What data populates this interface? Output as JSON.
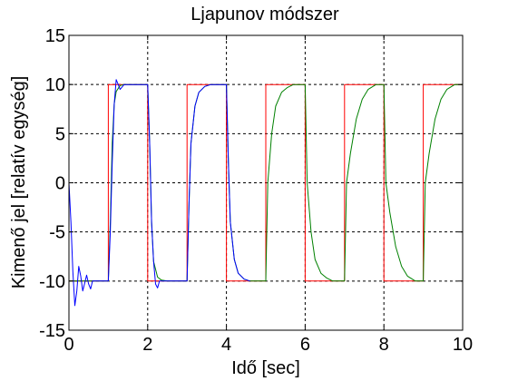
{
  "chart_data": {
    "type": "line",
    "title": "Ljapunov módszer",
    "xlabel": "Idő [sec]",
    "ylabel": "Kimenő jel [relatív egység]",
    "xlim": [
      0,
      10
    ],
    "ylim": [
      -15,
      15
    ],
    "xticks": [
      "0",
      "2",
      "4",
      "6",
      "8",
      "10"
    ],
    "yticks": [
      "15",
      "10",
      "5",
      "0",
      "-5",
      "-10",
      "-15"
    ],
    "grid": true,
    "series": [
      {
        "color": "#ff0000",
        "style": "reference square wave",
        "x": [
          0,
          1,
          1,
          2,
          2,
          3,
          3,
          4,
          4,
          5,
          5,
          6,
          6,
          7,
          7,
          8,
          8,
          9,
          9,
          10
        ],
        "y": [
          -10,
          -10,
          10,
          10,
          -10,
          -10,
          10,
          10,
          -10,
          -10,
          10,
          10,
          -10,
          -10,
          10,
          10,
          -10,
          -10,
          10,
          10
        ]
      },
      {
        "color": "#008000",
        "style": "output with slowing first-order tracking",
        "x": [
          0,
          1,
          1.05,
          1.1,
          1.15,
          1.2,
          1.3,
          1.4,
          1.6,
          2,
          2.05,
          2.1,
          2.15,
          2.25,
          2.35,
          2.5,
          3,
          3.05,
          3.1,
          3.2,
          3.3,
          3.45,
          3.6,
          4,
          4.05,
          4.1,
          4.2,
          4.3,
          4.45,
          4.6,
          5,
          5.05,
          5.15,
          5.25,
          5.4,
          5.55,
          5.7,
          6,
          6.05,
          6.15,
          6.25,
          6.4,
          6.55,
          6.7,
          7,
          7.05,
          7.15,
          7.3,
          7.45,
          7.6,
          7.8,
          8,
          8.05,
          8.15,
          8.3,
          8.45,
          8.6,
          8.8,
          9,
          9.05,
          9.15,
          9.3,
          9.45,
          9.6,
          9.8,
          10
        ],
        "y": [
          -10,
          -10,
          -4,
          4,
          8,
          9.3,
          9.9,
          10,
          10,
          10,
          4,
          -4,
          -8,
          -9.6,
          -9.9,
          -10,
          -10,
          -2,
          4,
          7.8,
          9.2,
          9.8,
          10,
          10,
          2,
          -4,
          -7.8,
          -9.2,
          -9.8,
          -10,
          -10,
          0,
          5,
          7.8,
          9.2,
          9.7,
          10,
          10,
          0,
          -5,
          -7.8,
          -9.2,
          -9.7,
          -10,
          -10,
          0,
          3,
          6.5,
          8.5,
          9.5,
          10,
          10,
          0,
          -3,
          -6.5,
          -8.5,
          -9.5,
          -10,
          -10,
          0,
          3,
          6.5,
          8.5,
          9.5,
          10,
          10
        ]
      },
      {
        "color": "#0000ff",
        "style": "output with initial oscillation",
        "x": [
          0,
          0.05,
          0.1,
          0.15,
          0.2,
          0.25,
          0.3,
          0.35,
          0.4,
          0.45,
          0.5,
          0.55,
          0.6,
          0.7,
          0.8,
          1,
          1.05,
          1.1,
          1.15,
          1.2,
          1.25,
          1.3,
          1.4,
          1.6,
          2,
          2.05,
          2.1,
          2.15,
          2.2,
          2.25,
          2.3,
          2.4,
          2.6,
          3,
          3.05,
          3.1,
          3.2,
          3.3,
          3.45,
          3.6,
          4,
          4.05,
          4.1,
          4.2,
          4.3,
          4.45,
          4.6
        ],
        "y": [
          0,
          -4,
          -9,
          -12.5,
          -11,
          -8.5,
          -9.5,
          -11,
          -10.2,
          -9.4,
          -10.3,
          -10.8,
          -10,
          -10,
          -10,
          -10,
          -5,
          2,
          8,
          10.5,
          10,
          9.5,
          10,
          10,
          10,
          4,
          -4,
          -8,
          -10.3,
          -10.7,
          -10,
          -10,
          -10,
          -10,
          -2,
          4,
          7.8,
          9.2,
          9.8,
          10,
          10,
          2,
          -4,
          -7.8,
          -9.2,
          -9.8,
          -10
        ]
      }
    ]
  }
}
